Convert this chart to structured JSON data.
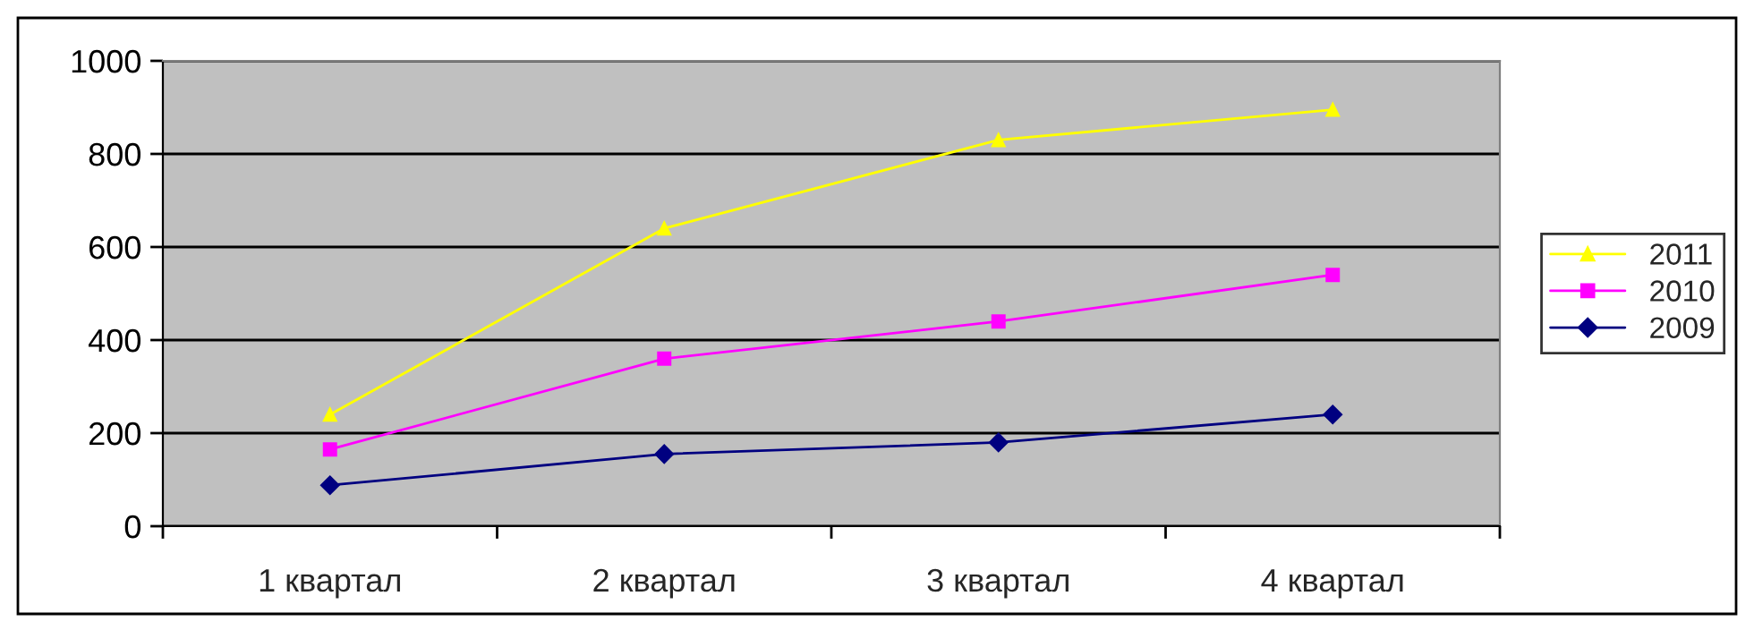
{
  "chart_data": {
    "type": "line",
    "categories": [
      "1 квартал",
      "2 квартал",
      "3 квартал",
      "4 квартал"
    ],
    "series": [
      {
        "name": "2011",
        "color": "#ffff00",
        "marker": "triangle",
        "values": [
          240,
          640,
          830,
          895
        ]
      },
      {
        "name": "2010",
        "color": "#ff00ff",
        "marker": "square",
        "values": [
          165,
          360,
          440,
          540
        ]
      },
      {
        "name": "2009",
        "color": "#000080",
        "marker": "diamond",
        "values": [
          88,
          155,
          180,
          240
        ]
      }
    ],
    "ylim": [
      0,
      1000
    ],
    "yticks": [
      0,
      200,
      400,
      600,
      800,
      1000
    ],
    "grid": "y",
    "legend": "right",
    "line_style": "solid"
  }
}
